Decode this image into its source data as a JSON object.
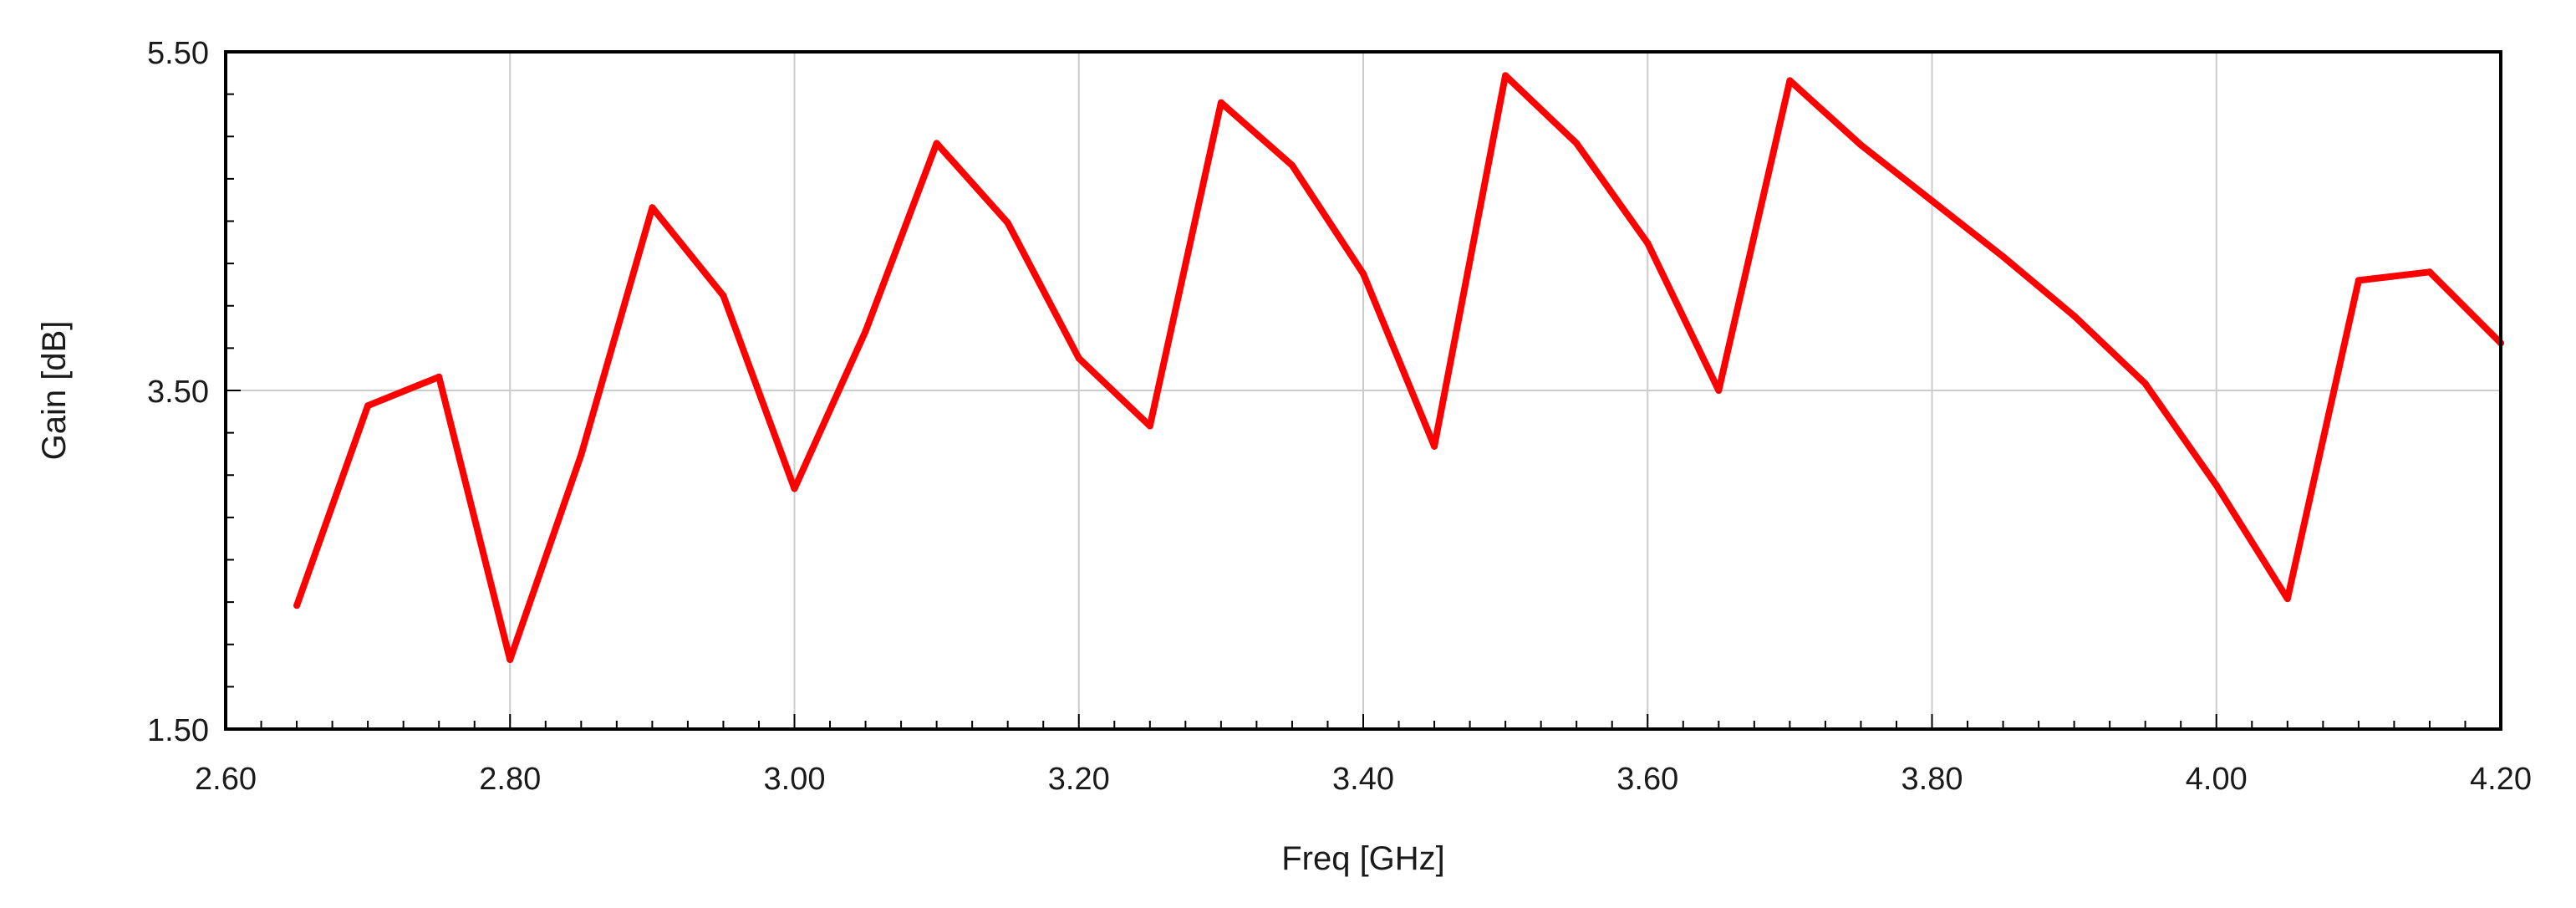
{
  "chart_data": {
    "type": "line",
    "title": "",
    "xlabel": "Freq [GHz]",
    "ylabel": "Gain [dB]",
    "xlim": [
      2.6,
      4.2
    ],
    "ylim": [
      1.5,
      5.5
    ],
    "xticks": [
      "2.60",
      "2.80",
      "3.00",
      "3.20",
      "3.40",
      "3.60",
      "3.80",
      "4.00",
      "4.20"
    ],
    "yticks": [
      "1.50",
      "3.50",
      "5.50"
    ],
    "grid": true,
    "legend": "none",
    "series": [
      {
        "color": "#ff0000",
        "x": [
          2.65,
          2.7,
          2.75,
          2.8,
          2.85,
          2.9,
          2.95,
          3.0,
          3.05,
          3.1,
          3.15,
          3.2,
          3.25,
          3.3,
          3.35,
          3.4,
          3.45,
          3.5,
          3.55,
          3.6,
          3.65,
          3.7,
          3.75,
          3.8,
          3.85,
          3.9,
          3.95,
          4.0,
          4.05,
          4.1,
          4.15,
          4.2
        ],
        "y": [
          2.23,
          3.41,
          3.58,
          1.91,
          3.12,
          4.58,
          4.06,
          2.92,
          3.85,
          4.96,
          4.49,
          3.69,
          3.29,
          5.2,
          4.83,
          4.19,
          3.17,
          5.36,
          4.96,
          4.37,
          3.5,
          5.33,
          4.95,
          4.62,
          4.29,
          3.94,
          3.54,
          2.94,
          2.27,
          4.15,
          4.2,
          3.78
        ]
      }
    ]
  }
}
